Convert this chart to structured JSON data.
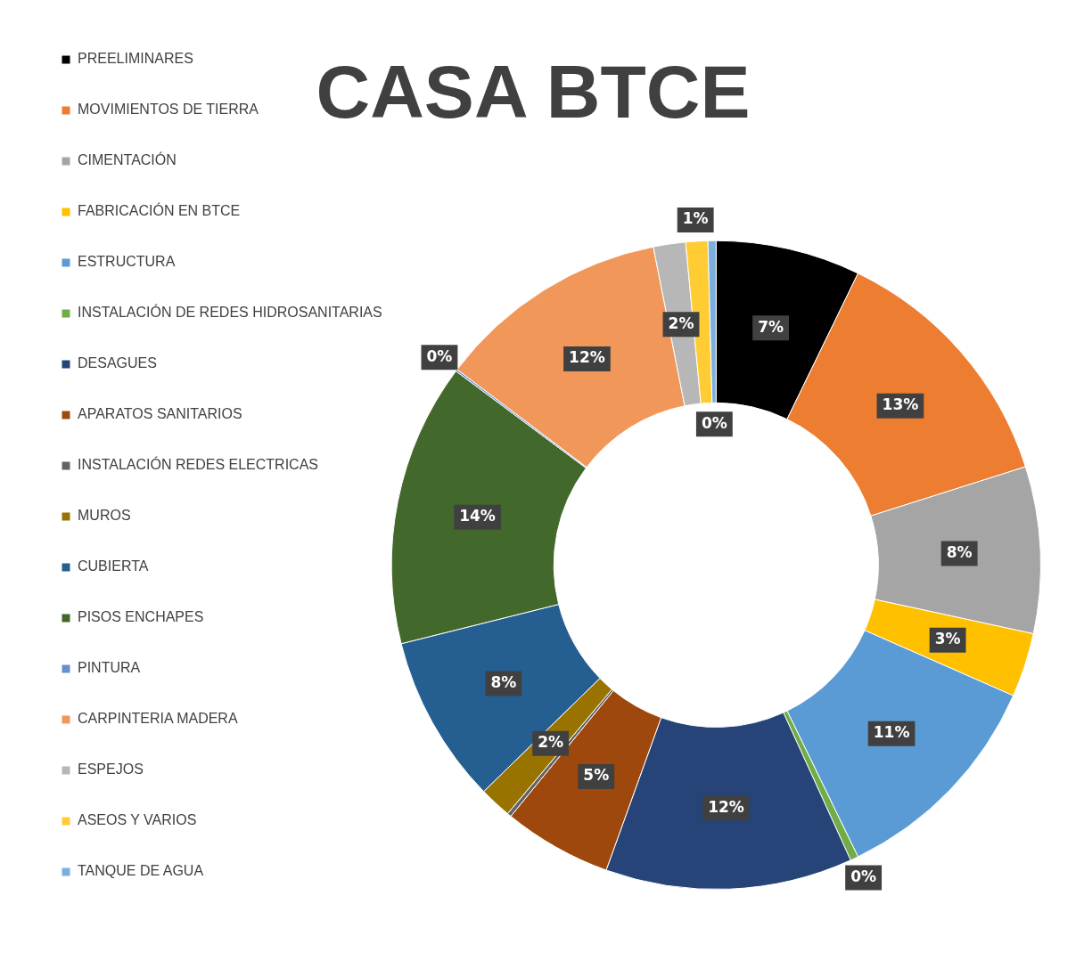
{
  "chart_data": {
    "type": "donut",
    "title": "CASA BTCE",
    "categories": [
      "PREELIMINARES",
      "MOVIMIENTOS DE TIERRA",
      "CIMENTACIÓN",
      "FABRICACIÓN EN BTCE",
      "ESTRUCTURA",
      "INSTALACIÓN DE REDES HIDROSANITARIAS",
      "DESAGUES",
      "APARATOS SANITARIOS",
      "INSTALACIÓN REDES ELECTRICAS",
      "MUROS",
      "CUBIERTA",
      "PISOS ENCHAPES",
      "PINTURA",
      "CARPINTERIA MADERA",
      "ESPEJOS",
      "ASEOS Y VARIOS",
      "TANQUE DE AGUA"
    ],
    "values": [
      7.2,
      12.9,
      8.3,
      3.2,
      11.2,
      0.4,
      12.3,
      5.4,
      0.2,
      1.6,
      8.4,
      14.1,
      0.1,
      11.6,
      1.6,
      1.1,
      0.4
    ],
    "colors": [
      "#000000",
      "#ed7d31",
      "#a5a5a5",
      "#ffc000",
      "#5b9bd5",
      "#70ad47",
      "#264478",
      "#9e480e",
      "#636363",
      "#997300",
      "#255e91",
      "#43682b",
      "#698ed0",
      "#f1975a",
      "#b7b7b7",
      "#ffcd33",
      "#7cafdd"
    ],
    "value_labels": [
      "7%",
      "13%",
      "8%",
      "3%",
      "11%",
      "0%",
      "12%",
      "5%",
      null,
      "2%",
      "8%",
      "14%",
      "0%",
      "12%",
      "2%",
      "1%",
      "0%"
    ],
    "legend": "left"
  }
}
